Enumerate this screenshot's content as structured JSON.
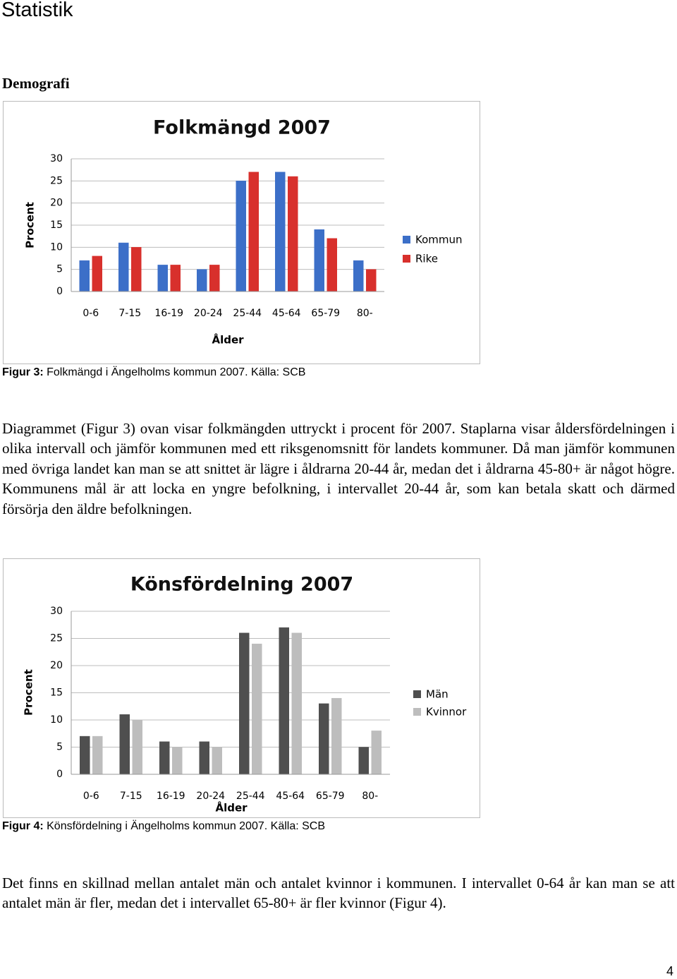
{
  "header": {
    "title": "Statistik"
  },
  "section": "Demografi",
  "chart_data": [
    {
      "type": "bar",
      "title": "Folkmängd 2007",
      "x_label": "Ålder",
      "y_label": "Procent",
      "categories": [
        "0-6",
        "7-15",
        "16-19",
        "20-24",
        "25-44",
        "45-64",
        "65-79",
        "80-"
      ],
      "series": [
        {
          "name": "Kommun",
          "color": "#3c6fc8",
          "values": [
            7,
            11,
            6,
            5,
            25,
            27,
            14,
            7
          ]
        },
        {
          "name": "Rike",
          "color": "#d8302c",
          "values": [
            8,
            10,
            6,
            6,
            27,
            26,
            12,
            5
          ]
        }
      ],
      "ylim": [
        0,
        30
      ],
      "yticks": [
        0,
        5,
        10,
        15,
        20,
        25,
        30
      ],
      "grid": true,
      "legend": "right"
    },
    {
      "type": "bar",
      "title": "Könsfördelning 2007",
      "x_label": "Ålder",
      "y_label": "Procent",
      "categories": [
        "0-6",
        "7-15",
        "16-19",
        "20-24",
        "25-44",
        "45-64",
        "65-79",
        "80-"
      ],
      "series": [
        {
          "name": "Män",
          "color": "#4f4f4f",
          "values": [
            7,
            11,
            6,
            6,
            26,
            27,
            13,
            5
          ]
        },
        {
          "name": "Kvinnor",
          "color": "#bdbdbd",
          "values": [
            7,
            10,
            5,
            5,
            24,
            26,
            14,
            8
          ]
        }
      ],
      "ylim": [
        0,
        30
      ],
      "yticks": [
        0,
        5,
        10,
        15,
        20,
        25,
        30
      ],
      "grid": true,
      "legend": "right"
    }
  ],
  "captions": [
    {
      "label": "Figur 3:",
      "text": "Folkmängd i Ängelholms kommun 2007. Källa: SCB"
    },
    {
      "label": "Figur 4:",
      "text": "Könsfördelning i Ängelholms kommun 2007. Källa: SCB"
    }
  ],
  "paragraphs": [
    "Diagrammet (Figur 3) ovan visar folkmängden uttryckt i procent för 2007. Staplarna visar åldersfördelningen i olika intervall och jämför kommunen med ett riksgenomsnitt för landets kommuner. Då man jämför kommunen med övriga landet kan man se att snittet är lägre i åldrarna 20-44 år, medan det i åldrarna 45-80+ är något högre. Kommunens mål är att locka en yngre befolkning, i intervallet 20-44 år, som kan betala skatt och därmed försörja den äldre befolkningen.",
    "Det finns en skillnad mellan antalet män och antalet kvinnor i kommunen. I intervallet 0-64 år kan man se att antalet män är fler, medan det i intervallet 65-80+ är fler kvinnor (Figur 4)."
  ],
  "page_number": "4"
}
